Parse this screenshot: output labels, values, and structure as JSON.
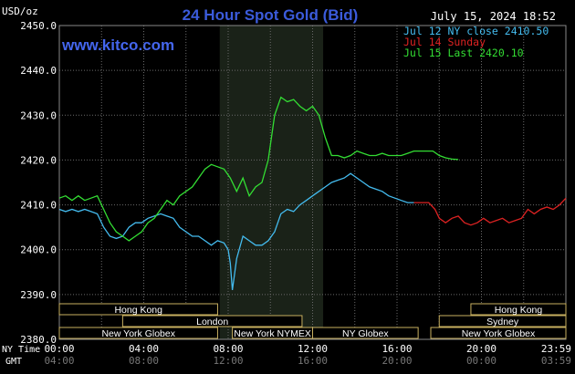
{
  "header": {
    "units": "USD/oz",
    "title": "24 Hour Spot Gold (Bid)",
    "timestamp": "July 15, 2024 18:52",
    "website": "www.kitco.com"
  },
  "colors": {
    "background": "#000000",
    "plot_background": "#000000",
    "session_highlight": "#1a2218",
    "grid": "#6a6a6a",
    "axis_text": "#ffffff",
    "title": "#3b5bdb",
    "website": "#4466ee",
    "ny_close": "#44bbee",
    "sunday": "#dd2222",
    "last": "#33dd33",
    "market_box_bg": "#000000",
    "market_box_border": "#c8b060",
    "market_box_text": "#ffffff"
  },
  "legend": [
    {
      "label": "Jul 12 NY close 2410.50",
      "color_key": "ny_close"
    },
    {
      "label": "Jul 14 Sunday",
      "color_key": "sunday"
    },
    {
      "label": "Jul 15 Last 2420.10",
      "color_key": "last"
    }
  ],
  "chart_data": {
    "type": "line",
    "title": "24 Hour Spot Gold (Bid)",
    "ylabel": "USD/oz",
    "ylim": [
      2380,
      2450
    ],
    "xlim_hours": [
      0,
      24
    ],
    "y_ticks": [
      "2450.0",
      "2440.0",
      "2430.0",
      "2420.0",
      "2410.0",
      "2400.0",
      "2390.0",
      "2380.0"
    ],
    "y_tick_values": [
      2450,
      2440,
      2430,
      2420,
      2410,
      2400,
      2390,
      2380
    ],
    "x_tick_hours": [
      0,
      4,
      8,
      12,
      16,
      20,
      24
    ],
    "x_ticks_ny": [
      "00:00",
      "04:00",
      "08:00",
      "12:00",
      "16:00",
      "20:00",
      "23:59"
    ],
    "x_ticks_gmt": [
      "04:00",
      "08:00",
      "12:00",
      "16:00",
      "20:00",
      "00:00",
      "03:59"
    ],
    "x_row_label_ny": "NY Time",
    "x_row_label_gmt": "GMT",
    "highlight_hours": [
      7.6,
      12.5
    ],
    "series": [
      {
        "name": "Jul 12 NY close 2410.50",
        "color_key": "ny_close",
        "x": [
          0.0,
          0.3,
          0.6,
          0.9,
          1.2,
          1.5,
          1.8,
          2.1,
          2.4,
          2.7,
          3.0,
          3.3,
          3.6,
          3.9,
          4.2,
          4.5,
          4.8,
          5.1,
          5.4,
          5.7,
          6.0,
          6.3,
          6.6,
          6.9,
          7.2,
          7.5,
          7.8,
          8.0,
          8.1,
          8.2,
          8.4,
          8.7,
          9.0,
          9.3,
          9.6,
          9.9,
          10.2,
          10.5,
          10.8,
          11.1,
          11.4,
          11.7,
          12.0,
          12.3,
          12.6,
          12.9,
          13.2,
          13.5,
          13.8,
          14.1,
          14.4,
          14.7,
          15.0,
          15.3,
          15.6,
          15.9,
          16.2,
          16.5,
          16.8
        ],
        "values": [
          2409,
          2408.5,
          2409,
          2408.5,
          2409,
          2408.5,
          2408,
          2405,
          2403,
          2402.5,
          2403,
          2405,
          2406,
          2406,
          2407,
          2407.5,
          2408,
          2407.5,
          2407,
          2405,
          2404,
          2403,
          2403,
          2402,
          2401,
          2402,
          2401.5,
          2400,
          2397,
          2391,
          2398,
          2403,
          2402,
          2401,
          2401,
          2402,
          2404,
          2408,
          2409,
          2408.5,
          2410,
          2411,
          2412,
          2413,
          2414,
          2415,
          2415.5,
          2416,
          2417,
          2416,
          2415,
          2414,
          2413.5,
          2413,
          2412,
          2411.5,
          2411,
          2410.5,
          2410.5
        ]
      },
      {
        "name": "Jul 14 Sunday",
        "color_key": "sunday",
        "x": [
          16.8,
          17.2,
          17.5,
          17.8,
          18.0,
          18.3,
          18.6,
          18.9,
          19.2,
          19.5,
          19.8,
          20.1,
          20.4,
          20.7,
          21.0,
          21.3,
          21.6,
          21.9,
          22.2,
          22.5,
          22.8,
          23.1,
          23.4,
          23.7,
          24.0
        ],
        "values": [
          2410.5,
          2410.5,
          2410.5,
          2409,
          2407,
          2406,
          2407,
          2407.5,
          2406,
          2405.5,
          2406,
          2407,
          2406,
          2406.5,
          2407,
          2406,
          2406.5,
          2407,
          2409,
          2408,
          2409,
          2409.5,
          2409,
          2410,
          2411.5
        ]
      },
      {
        "name": "Jul 15 Last 2420.10",
        "color_key": "last",
        "x": [
          0.0,
          0.3,
          0.6,
          0.9,
          1.2,
          1.5,
          1.8,
          2.1,
          2.4,
          2.7,
          3.0,
          3.3,
          3.6,
          3.9,
          4.2,
          4.5,
          4.8,
          5.1,
          5.4,
          5.7,
          6.0,
          6.3,
          6.6,
          6.9,
          7.2,
          7.5,
          7.8,
          8.1,
          8.4,
          8.7,
          9.0,
          9.3,
          9.6,
          9.9,
          10.2,
          10.5,
          10.8,
          11.1,
          11.4,
          11.7,
          12.0,
          12.3,
          12.6,
          12.9,
          13.2,
          13.5,
          13.8,
          14.1,
          14.4,
          14.7,
          15.0,
          15.3,
          15.6,
          15.9,
          16.2,
          16.5,
          16.8,
          17.1,
          17.4,
          17.7,
          18.0,
          18.3,
          18.6,
          18.9
        ],
        "values": [
          2411.5,
          2412,
          2411,
          2412,
          2411,
          2411.5,
          2412,
          2409,
          2406,
          2404,
          2403,
          2402,
          2403,
          2404,
          2406,
          2407,
          2409,
          2411,
          2410,
          2412,
          2413,
          2414,
          2416,
          2418,
          2419,
          2418.5,
          2418,
          2416,
          2413,
          2416,
          2412,
          2414,
          2415,
          2420,
          2430,
          2434,
          2433,
          2433.5,
          2432,
          2431,
          2432,
          2430,
          2425,
          2421,
          2421,
          2420.5,
          2421,
          2422,
          2421.5,
          2421,
          2421,
          2421.5,
          2421,
          2421,
          2421,
          2421.5,
          2422,
          2422,
          2422,
          2422,
          2421,
          2420.5,
          2420.2,
          2420.1
        ]
      }
    ]
  },
  "market_sessions": [
    {
      "label": "Hong Kong",
      "row": 0,
      "start_hour": 0.0,
      "end_hour": 7.5
    },
    {
      "label": "London",
      "row": 1,
      "start_hour": 3.0,
      "end_hour": 11.5
    },
    {
      "label": "New York Globex",
      "row": 2,
      "start_hour": 0.0,
      "end_hour": 7.5
    },
    {
      "label": "New York NYMEX",
      "row": 2,
      "start_hour": 8.2,
      "end_hour": 12.0
    },
    {
      "label": "NY Globex",
      "row": 2,
      "start_hour": 12.0,
      "end_hour": 17.0
    },
    {
      "label": "Hong Kong",
      "row": 0,
      "start_hour": 19.5,
      "end_hour": 24.0
    },
    {
      "label": "Sydney",
      "row": 1,
      "start_hour": 18.0,
      "end_hour": 24.0
    },
    {
      "label": "New York Globex",
      "row": 2,
      "start_hour": 17.6,
      "end_hour": 24.0
    }
  ]
}
